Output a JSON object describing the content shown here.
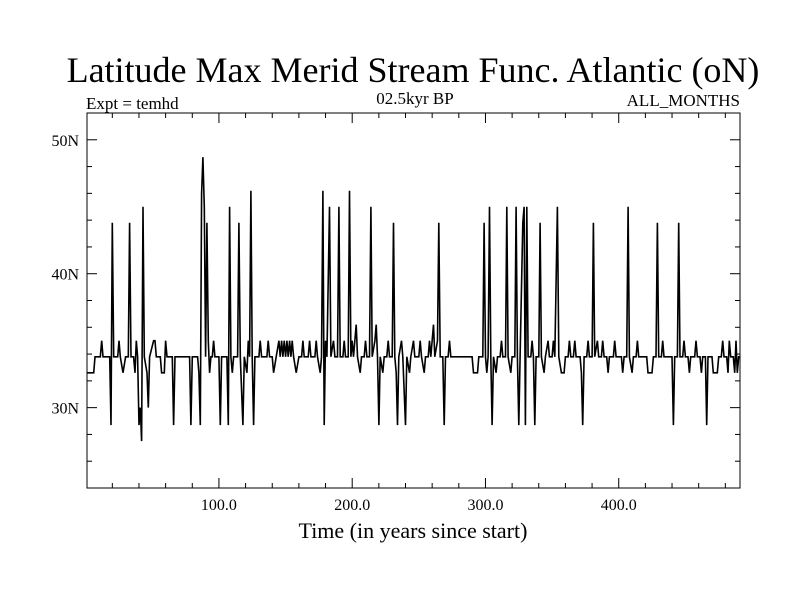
{
  "chart_data": {
    "type": "line",
    "title": "Latitude Max Merid Stream Func. Atlantic (oN)",
    "subtitle_left": "Expt = temhd",
    "subtitle_center": "02.5kyr BP",
    "subtitle_right": "ALL_MONTHS",
    "xlabel": "Time (in years since start)",
    "ylabel": "",
    "xlim": [
      1,
      491
    ],
    "ylim": [
      24,
      52
    ],
    "x_ticks": [
      {
        "value": 100,
        "label": "100.0"
      },
      {
        "value": 200,
        "label": "200.0"
      },
      {
        "value": 300,
        "label": "300.0"
      },
      {
        "value": 400,
        "label": "400.0"
      }
    ],
    "y_ticks": [
      {
        "value": 30,
        "label": "30N"
      },
      {
        "value": 40,
        "label": "40N"
      },
      {
        "value": 50,
        "label": "50N"
      }
    ],
    "grid": false,
    "series": [
      {
        "name": "",
        "color": "#000000",
        "points": [
          [
            1,
            32.6
          ],
          [
            6,
            32.6
          ],
          [
            7,
            33.8
          ],
          [
            11,
            33.8
          ],
          [
            12,
            35
          ],
          [
            13,
            33.8
          ],
          [
            18,
            33.8
          ],
          [
            19,
            28.7
          ],
          [
            20,
            43.8
          ],
          [
            21,
            33.8
          ],
          [
            24,
            33.8
          ],
          [
            25,
            35
          ],
          [
            26,
            33.8
          ],
          [
            28,
            32.6
          ],
          [
            30,
            33.8
          ],
          [
            32,
            33.8
          ],
          [
            33,
            43.8
          ],
          [
            34,
            33.8
          ],
          [
            36,
            33.8
          ],
          [
            37,
            32.6
          ],
          [
            38,
            35
          ],
          [
            39,
            33.8
          ],
          [
            40,
            28.7
          ],
          [
            41,
            30
          ],
          [
            42,
            27.5
          ],
          [
            43,
            45
          ],
          [
            44,
            33.8
          ],
          [
            46,
            32.6
          ],
          [
            47,
            30
          ],
          [
            48,
            33.8
          ],
          [
            51,
            35
          ],
          [
            52,
            35
          ],
          [
            53,
            33.8
          ],
          [
            56,
            33.8
          ],
          [
            57,
            32.6
          ],
          [
            59,
            32.6
          ],
          [
            60,
            35
          ],
          [
            61,
            33.8
          ],
          [
            65,
            33.8
          ],
          [
            66,
            28.7
          ],
          [
            67,
            33.8
          ],
          [
            78,
            33.8
          ],
          [
            79,
            28.7
          ],
          [
            80,
            33.8
          ],
          [
            84,
            33.8
          ],
          [
            85,
            32.6
          ],
          [
            86,
            28.7
          ],
          [
            87,
            46
          ],
          [
            88,
            48.7
          ],
          [
            89,
            45
          ],
          [
            90,
            33.8
          ],
          [
            91,
            43.8
          ],
          [
            92,
            35
          ],
          [
            93,
            32.6
          ],
          [
            94,
            33.8
          ],
          [
            95,
            33.8
          ],
          [
            96,
            35
          ],
          [
            97,
            33.8
          ],
          [
            100,
            33.8
          ],
          [
            101,
            28.7
          ],
          [
            102,
            33.8
          ],
          [
            106,
            33.8
          ],
          [
            107,
            28.7
          ],
          [
            108,
            45
          ],
          [
            109,
            33.8
          ],
          [
            110,
            32.6
          ],
          [
            111,
            33.8
          ],
          [
            114,
            33.8
          ],
          [
            115,
            43.8
          ],
          [
            116,
            33.8
          ],
          [
            118,
            28.7
          ],
          [
            119,
            33.8
          ],
          [
            121,
            32.6
          ],
          [
            122,
            35
          ],
          [
            123,
            33.8
          ],
          [
            124,
            46.2
          ],
          [
            125,
            33.8
          ],
          [
            126,
            28.7
          ],
          [
            127,
            33.8
          ],
          [
            130,
            33.8
          ],
          [
            131,
            35
          ],
          [
            132,
            33.8
          ],
          [
            136,
            33.8
          ],
          [
            137,
            35
          ],
          [
            138,
            33.8
          ],
          [
            140,
            33.8
          ],
          [
            141,
            32.6
          ],
          [
            143,
            33.8
          ],
          [
            145,
            35
          ],
          [
            146,
            33.8
          ],
          [
            147,
            35
          ],
          [
            148,
            33.8
          ],
          [
            149,
            35
          ],
          [
            150,
            33.8
          ],
          [
            151,
            35
          ],
          [
            152,
            33.8
          ],
          [
            153,
            35
          ],
          [
            154,
            33.8
          ],
          [
            155,
            35
          ],
          [
            156,
            33.8
          ],
          [
            158,
            32.6
          ],
          [
            160,
            33.8
          ],
          [
            162,
            33.8
          ],
          [
            163,
            35
          ],
          [
            164,
            33.8
          ],
          [
            167,
            33.8
          ],
          [
            168,
            35
          ],
          [
            169,
            33.8
          ],
          [
            172,
            33.8
          ],
          [
            173,
            35
          ],
          [
            174,
            33.8
          ],
          [
            176,
            32.6
          ],
          [
            177,
            33.8
          ],
          [
            178,
            46.2
          ],
          [
            179,
            28.7
          ],
          [
            180,
            35
          ],
          [
            181,
            33.8
          ],
          [
            183,
            45
          ],
          [
            184,
            33.8
          ],
          [
            186,
            35
          ],
          [
            187,
            33.8
          ],
          [
            189,
            33.8
          ],
          [
            190,
            45
          ],
          [
            191,
            33.8
          ],
          [
            193,
            33.8
          ],
          [
            194,
            35
          ],
          [
            195,
            33.8
          ],
          [
            197,
            33.8
          ],
          [
            198,
            46.2
          ],
          [
            199,
            33.8
          ],
          [
            200,
            35
          ],
          [
            201,
            33.8
          ],
          [
            203,
            36.2
          ],
          [
            204,
            33.8
          ],
          [
            206,
            32.6
          ],
          [
            207,
            33.8
          ],
          [
            209,
            33.8
          ],
          [
            210,
            35
          ],
          [
            211,
            33.8
          ],
          [
            213,
            33.8
          ],
          [
            214,
            45
          ],
          [
            215,
            33.8
          ],
          [
            217,
            35
          ],
          [
            218,
            36.2
          ],
          [
            219,
            33.8
          ],
          [
            220,
            28.7
          ],
          [
            221,
            33.8
          ],
          [
            223,
            32.6
          ],
          [
            224,
            33.8
          ],
          [
            226,
            33.8
          ],
          [
            227,
            35
          ],
          [
            228,
            33.8
          ],
          [
            230,
            33.8
          ],
          [
            231,
            43.8
          ],
          [
            232,
            33.8
          ],
          [
            233,
            32.6
          ],
          [
            234,
            28.7
          ],
          [
            235,
            33.8
          ],
          [
            237,
            35
          ],
          [
            238,
            33.8
          ],
          [
            240,
            28.7
          ],
          [
            241,
            33.8
          ],
          [
            243,
            32.6
          ],
          [
            244,
            33.8
          ],
          [
            246,
            35
          ],
          [
            247,
            33.8
          ],
          [
            250,
            33.8
          ],
          [
            251,
            35
          ],
          [
            252,
            33.8
          ],
          [
            254,
            32.6
          ],
          [
            255,
            33.8
          ],
          [
            257,
            33.8
          ],
          [
            258,
            35
          ],
          [
            259,
            33.8
          ],
          [
            261,
            36.2
          ],
          [
            262,
            33.8
          ],
          [
            264,
            35
          ],
          [
            265,
            43.8
          ],
          [
            266,
            33.8
          ],
          [
            268,
            33.8
          ],
          [
            269,
            28.7
          ],
          [
            270,
            33.8
          ],
          [
            272,
            33.8
          ],
          [
            273,
            35
          ],
          [
            274,
            33.8
          ],
          [
            290,
            33.8
          ],
          [
            291,
            32.6
          ],
          [
            294,
            32.6
          ],
          [
            295,
            33.8
          ],
          [
            298,
            33.8
          ],
          [
            299,
            43.8
          ],
          [
            300,
            33.8
          ],
          [
            301,
            32.6
          ],
          [
            302,
            33.8
          ],
          [
            303,
            45
          ],
          [
            304,
            33.8
          ],
          [
            305,
            28.7
          ],
          [
            306,
            33.8
          ],
          [
            308,
            32.6
          ],
          [
            309,
            33.8
          ],
          [
            311,
            33.8
          ],
          [
            312,
            35
          ],
          [
            313,
            33.8
          ],
          [
            315,
            33.8
          ],
          [
            316,
            45
          ],
          [
            317,
            33.8
          ],
          [
            319,
            32.6
          ],
          [
            320,
            33.8
          ],
          [
            322,
            33.8
          ],
          [
            323,
            45
          ],
          [
            324,
            33.8
          ],
          [
            325,
            28.7
          ],
          [
            326,
            33.8
          ],
          [
            328,
            43.8
          ],
          [
            329,
            45
          ],
          [
            330,
            28.7
          ],
          [
            331,
            45
          ],
          [
            332,
            33.8
          ],
          [
            334,
            33.8
          ],
          [
            335,
            35
          ],
          [
            336,
            33.8
          ],
          [
            337,
            28.7
          ],
          [
            338,
            33.8
          ],
          [
            340,
            33.8
          ],
          [
            341,
            43.8
          ],
          [
            342,
            33.8
          ],
          [
            344,
            32.6
          ],
          [
            345,
            33.8
          ],
          [
            347,
            35
          ],
          [
            348,
            33.8
          ],
          [
            350,
            33.8
          ],
          [
            351,
            35
          ],
          [
            352,
            33.8
          ],
          [
            354,
            45
          ],
          [
            355,
            33.8
          ],
          [
            357,
            32.6
          ],
          [
            359,
            32.6
          ],
          [
            360,
            33.8
          ],
          [
            362,
            33.8
          ],
          [
            363,
            35
          ],
          [
            364,
            33.8
          ],
          [
            366,
            33.8
          ],
          [
            367,
            35
          ],
          [
            368,
            33.8
          ],
          [
            371,
            33.8
          ],
          [
            372,
            32.6
          ],
          [
            373,
            28.7
          ],
          [
            374,
            33.8
          ],
          [
            376,
            33.8
          ],
          [
            377,
            35
          ],
          [
            378,
            33.8
          ],
          [
            380,
            33.8
          ],
          [
            381,
            43.8
          ],
          [
            382,
            33.8
          ],
          [
            384,
            35
          ],
          [
            385,
            33.8
          ],
          [
            387,
            33.8
          ],
          [
            388,
            35
          ],
          [
            389,
            33.8
          ],
          [
            391,
            33.8
          ],
          [
            392,
            32.6
          ],
          [
            393,
            33.8
          ],
          [
            396,
            33.8
          ],
          [
            397,
            35
          ],
          [
            398,
            33.8
          ],
          [
            402,
            33.8
          ],
          [
            403,
            32.6
          ],
          [
            404,
            33.8
          ],
          [
            406,
            33.8
          ],
          [
            407,
            45
          ],
          [
            408,
            33.8
          ],
          [
            410,
            32.6
          ],
          [
            411,
            33.8
          ],
          [
            413,
            33.8
          ],
          [
            414,
            35
          ],
          [
            415,
            33.8
          ],
          [
            421,
            33.8
          ],
          [
            422,
            32.6
          ],
          [
            425,
            32.6
          ],
          [
            426,
            33.8
          ],
          [
            428,
            33.8
          ],
          [
            429,
            43.8
          ],
          [
            430,
            33.8
          ],
          [
            432,
            33.8
          ],
          [
            433,
            35
          ],
          [
            434,
            33.8
          ],
          [
            440,
            33.8
          ],
          [
            441,
            28.7
          ],
          [
            442,
            33.8
          ],
          [
            444,
            33.8
          ],
          [
            445,
            43.8
          ],
          [
            446,
            33.8
          ],
          [
            448,
            33.8
          ],
          [
            449,
            35
          ],
          [
            450,
            33.8
          ],
          [
            452,
            33.8
          ],
          [
            453,
            32.6
          ],
          [
            454,
            33.8
          ],
          [
            457,
            33.8
          ],
          [
            458,
            35
          ],
          [
            459,
            33.8
          ],
          [
            461,
            33.8
          ],
          [
            462,
            32.6
          ],
          [
            463,
            33.8
          ],
          [
            465,
            33.8
          ],
          [
            466,
            28.7
          ],
          [
            467,
            33.8
          ],
          [
            470,
            33.8
          ],
          [
            471,
            32.6
          ],
          [
            474,
            32.6
          ],
          [
            475,
            33.8
          ],
          [
            477,
            33.8
          ],
          [
            478,
            35
          ],
          [
            479,
            33.8
          ],
          [
            481,
            33.8
          ],
          [
            482,
            32.6
          ],
          [
            483,
            35
          ],
          [
            484,
            33.8
          ],
          [
            486,
            33.8
          ],
          [
            487,
            32.6
          ],
          [
            488,
            35
          ],
          [
            489,
            32.6
          ],
          [
            490,
            33.8
          ],
          [
            491,
            33.8
          ]
        ]
      }
    ]
  }
}
